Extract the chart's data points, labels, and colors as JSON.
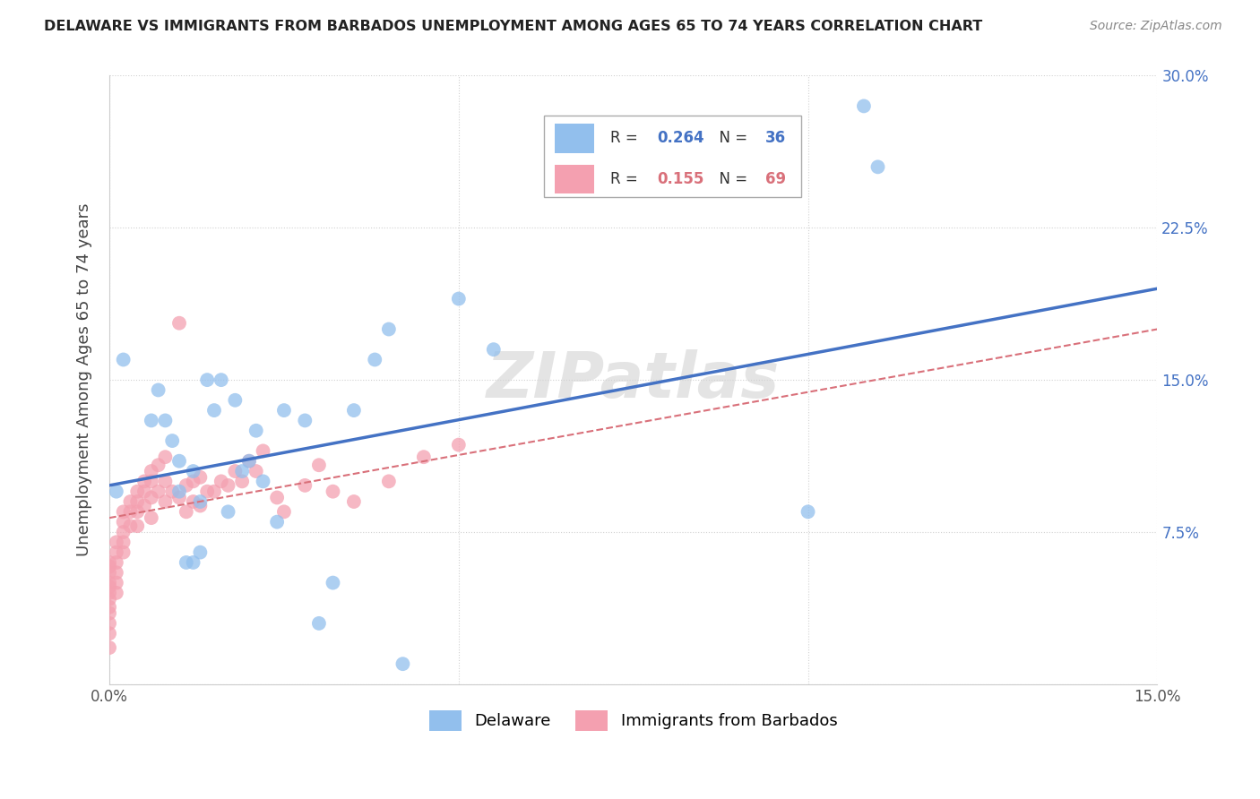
{
  "title": "DELAWARE VS IMMIGRANTS FROM BARBADOS UNEMPLOYMENT AMONG AGES 65 TO 74 YEARS CORRELATION CHART",
  "source": "Source: ZipAtlas.com",
  "ylabel": "Unemployment Among Ages 65 to 74 years",
  "xlim": [
    0.0,
    0.15
  ],
  "ylim": [
    0.0,
    0.3
  ],
  "delaware_R": 0.264,
  "delaware_N": 36,
  "barbados_R": 0.155,
  "barbados_N": 69,
  "delaware_color": "#92BFED",
  "barbados_color": "#F4A0B0",
  "delaware_line_color": "#4472C4",
  "barbados_line_color": "#D9707A",
  "legend_label_1": "Delaware",
  "legend_label_2": "Immigrants from Barbados",
  "delaware_x": [
    0.001,
    0.002,
    0.006,
    0.007,
    0.008,
    0.009,
    0.01,
    0.01,
    0.011,
    0.012,
    0.012,
    0.013,
    0.013,
    0.014,
    0.015,
    0.016,
    0.017,
    0.018,
    0.019,
    0.02,
    0.021,
    0.022,
    0.024,
    0.025,
    0.028,
    0.03,
    0.032,
    0.035,
    0.038,
    0.04,
    0.042,
    0.05,
    0.055,
    0.1,
    0.108,
    0.11
  ],
  "delaware_y": [
    0.095,
    0.16,
    0.13,
    0.145,
    0.13,
    0.12,
    0.11,
    0.095,
    0.06,
    0.06,
    0.105,
    0.09,
    0.065,
    0.15,
    0.135,
    0.15,
    0.085,
    0.14,
    0.105,
    0.11,
    0.125,
    0.1,
    0.08,
    0.135,
    0.13,
    0.03,
    0.05,
    0.135,
    0.16,
    0.175,
    0.01,
    0.19,
    0.165,
    0.085,
    0.285,
    0.255
  ],
  "barbados_x": [
    0.0,
    0.0,
    0.0,
    0.0,
    0.0,
    0.0,
    0.0,
    0.0,
    0.0,
    0.0,
    0.0,
    0.0,
    0.001,
    0.001,
    0.001,
    0.001,
    0.001,
    0.001,
    0.002,
    0.002,
    0.002,
    0.002,
    0.002,
    0.003,
    0.003,
    0.003,
    0.004,
    0.004,
    0.004,
    0.004,
    0.005,
    0.005,
    0.005,
    0.006,
    0.006,
    0.006,
    0.006,
    0.007,
    0.007,
    0.008,
    0.008,
    0.008,
    0.009,
    0.01,
    0.01,
    0.011,
    0.011,
    0.012,
    0.012,
    0.013,
    0.013,
    0.014,
    0.015,
    0.016,
    0.017,
    0.018,
    0.019,
    0.02,
    0.021,
    0.022,
    0.024,
    0.025,
    0.028,
    0.03,
    0.032,
    0.035,
    0.04,
    0.045,
    0.05
  ],
  "barbados_y": [
    0.06,
    0.058,
    0.055,
    0.05,
    0.048,
    0.045,
    0.042,
    0.038,
    0.035,
    0.03,
    0.025,
    0.018,
    0.07,
    0.065,
    0.06,
    0.055,
    0.05,
    0.045,
    0.085,
    0.08,
    0.075,
    0.07,
    0.065,
    0.09,
    0.085,
    0.078,
    0.095,
    0.09,
    0.085,
    0.078,
    0.1,
    0.095,
    0.088,
    0.105,
    0.1,
    0.092,
    0.082,
    0.108,
    0.095,
    0.112,
    0.1,
    0.09,
    0.095,
    0.178,
    0.092,
    0.098,
    0.085,
    0.1,
    0.09,
    0.102,
    0.088,
    0.095,
    0.095,
    0.1,
    0.098,
    0.105,
    0.1,
    0.11,
    0.105,
    0.115,
    0.092,
    0.085,
    0.098,
    0.108,
    0.095,
    0.09,
    0.1,
    0.112,
    0.118
  ]
}
